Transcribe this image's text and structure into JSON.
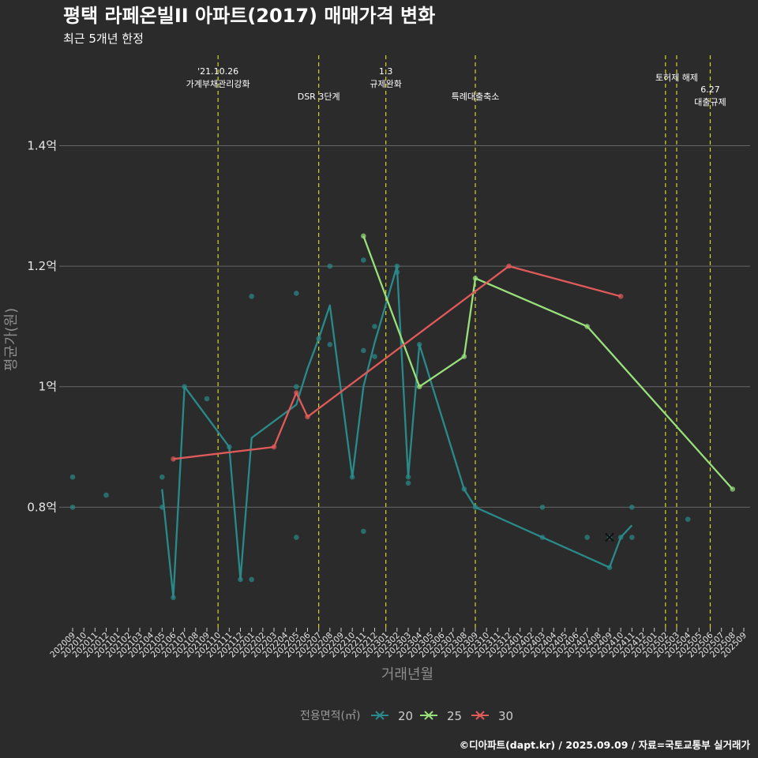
{
  "chart_data": {
    "type": "line",
    "title": "평택 라페온빌II 아파트(2017) 매매가격 변화",
    "subtitle": "최근 5개년 한정",
    "xlabel": "거래년월",
    "ylabel": "평균가(원)",
    "caption": "©디아파트(dapt.kr) / 2025.09.09 / 자료=국토교통부 실거래가",
    "ylim": [
      0.6,
      1.55
    ],
    "y_ticks": [
      {
        "value": 0.8,
        "label": "0.8억"
      },
      {
        "value": 1.0,
        "label": "1억"
      },
      {
        "value": 1.2,
        "label": "1.2억"
      },
      {
        "value": 1.4,
        "label": "1.4억"
      }
    ],
    "x_range": [
      "202009",
      "202509"
    ],
    "x_categories": [
      "202009",
      "202010",
      "202011",
      "202012",
      "202101",
      "202102",
      "202103",
      "202104",
      "202105",
      "202106",
      "202107",
      "202108",
      "202109",
      "202110",
      "202111",
      "202112",
      "202201",
      "202202",
      "202203",
      "202204",
      "202205",
      "202206",
      "202207",
      "202208",
      "202209",
      "202210",
      "202211",
      "202212",
      "202301",
      "202302",
      "202303",
      "202304",
      "202305",
      "202306",
      "202307",
      "202308",
      "202309",
      "202310",
      "202311",
      "202312",
      "202401",
      "202402",
      "202403",
      "202404",
      "202405",
      "202406",
      "202407",
      "202408",
      "202409",
      "202410",
      "202411",
      "202412",
      "202501",
      "202502",
      "202503",
      "202504",
      "202505",
      "202506",
      "202507",
      "202508",
      "202509"
    ],
    "legend_title": "전용면적(㎡)",
    "events": [
      {
        "x": "202110",
        "lines": [
          "'21.10.26",
          "가계부채관리강화"
        ],
        "tier": 0
      },
      {
        "x": "202207",
        "lines": [
          "DSR 3단계"
        ],
        "tier": 2
      },
      {
        "x": "202301",
        "lines": [
          "1.3",
          "규제완화"
        ],
        "tier": 0
      },
      {
        "x": "202309",
        "lines": [
          "특례대출축소"
        ],
        "tier": 2
      },
      {
        "x": "202502",
        "lines": [],
        "tier": 1
      },
      {
        "x": "202503",
        "lines": [
          "토허제 해제"
        ],
        "tier": 1
      },
      {
        "x": "202506",
        "lines": [
          "6.27",
          "대출규제"
        ],
        "tier": 3
      }
    ],
    "series": [
      {
        "name": "20",
        "color": "#2a8a8a",
        "line": [
          [
            "202105",
            0.83
          ],
          [
            "202106",
            0.65
          ],
          [
            "202107",
            1.0
          ],
          [
            "202111",
            0.9
          ],
          [
            "202112",
            0.68
          ],
          [
            "202201",
            0.915
          ],
          [
            "202205",
            0.97
          ],
          [
            "202206",
            1.03
          ],
          [
            "202207",
            1.08
          ],
          [
            "202208",
            1.135
          ],
          [
            "202210",
            0.85
          ],
          [
            "202211",
            1.0
          ],
          [
            "202212",
            1.073
          ],
          [
            "202302",
            1.2
          ],
          [
            "202303",
            0.85
          ],
          [
            "202304",
            1.07
          ],
          [
            "202308",
            0.83
          ],
          [
            "202309",
            0.8
          ],
          [
            "202409",
            0.7
          ],
          [
            "202410",
            0.75
          ],
          [
            "202411",
            0.77
          ]
        ],
        "points": [
          [
            "202009",
            0.85
          ],
          [
            "202009",
            0.8
          ],
          [
            "202012",
            0.82
          ],
          [
            "202105",
            0.85
          ],
          [
            "202105",
            0.8
          ],
          [
            "202106",
            0.65
          ],
          [
            "202107",
            1.0
          ],
          [
            "202109",
            0.98
          ],
          [
            "202111",
            0.9
          ],
          [
            "202112",
            0.68
          ],
          [
            "202201",
            1.15
          ],
          [
            "202201",
            0.68
          ],
          [
            "202205",
            1.155
          ],
          [
            "202205",
            1.0
          ],
          [
            "202205",
            0.75
          ],
          [
            "202207",
            1.08
          ],
          [
            "202208",
            1.2
          ],
          [
            "202208",
            1.07
          ],
          [
            "202210",
            0.85
          ],
          [
            "202211",
            1.21
          ],
          [
            "202211",
            1.06
          ],
          [
            "202211",
            0.76
          ],
          [
            "202212",
            1.1
          ],
          [
            "202212",
            1.05
          ],
          [
            "202302",
            1.2
          ],
          [
            "202302",
            1.19
          ],
          [
            "202303",
            0.85
          ],
          [
            "202303",
            0.84
          ],
          [
            "202304",
            1.07
          ],
          [
            "202308",
            0.83
          ],
          [
            "202309",
            0.8
          ],
          [
            "202403",
            0.8
          ],
          [
            "202403",
            0.75
          ],
          [
            "202407",
            0.75
          ],
          [
            "202409",
            0.75
          ],
          [
            "202409",
            0.7
          ],
          [
            "202410",
            0.75
          ],
          [
            "202411",
            0.8
          ],
          [
            "202411",
            0.75
          ],
          [
            "202504",
            0.78
          ]
        ]
      },
      {
        "name": "25",
        "color": "#99e07a",
        "line": [
          [
            "202211",
            1.25
          ],
          [
            "202304",
            1.0
          ],
          [
            "202308",
            1.05
          ],
          [
            "202309",
            1.18
          ],
          [
            "202407",
            1.1
          ],
          [
            "202508",
            0.83
          ]
        ],
        "points": [
          [
            "202211",
            1.25
          ],
          [
            "202304",
            1.0
          ],
          [
            "202308",
            1.05
          ],
          [
            "202309",
            1.18
          ],
          [
            "202407",
            1.1
          ],
          [
            "202508",
            0.83
          ]
        ]
      },
      {
        "name": "30",
        "color": "#e05a5a",
        "line": [
          [
            "202106",
            0.88
          ],
          [
            "202203",
            0.9
          ],
          [
            "202205",
            0.99
          ],
          [
            "202206",
            0.95
          ],
          [
            "202312",
            1.2
          ],
          [
            "202410",
            1.15
          ]
        ],
        "points": [
          [
            "202106",
            0.88
          ],
          [
            "202203",
            0.9
          ],
          [
            "202205",
            0.99
          ],
          [
            "202206",
            0.95
          ],
          [
            "202312",
            1.2
          ],
          [
            "202410",
            1.15
          ]
        ]
      }
    ],
    "marker": {
      "x": "202409",
      "y": 0.75,
      "symbol": "x"
    }
  }
}
